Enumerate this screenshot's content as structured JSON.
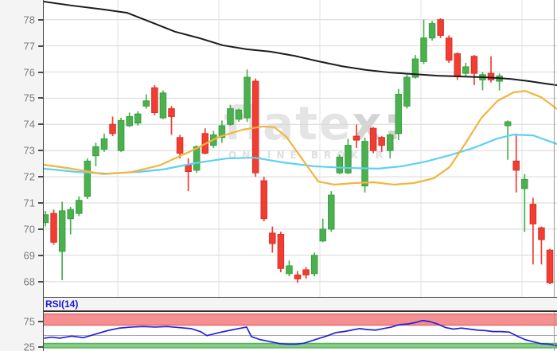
{
  "watermark": {
    "brand_main": "flate",
    "brand_suffix": "x:",
    "tagline": "ONLINE BROKER"
  },
  "price_axis": {
    "ticks": [
      78,
      77,
      76,
      75,
      74,
      73,
      72,
      71,
      70,
      69,
      68
    ]
  },
  "rsi_panel": {
    "title": "RSI(14)",
    "upper_label": "75",
    "lower_label": "25"
  },
  "colors": {
    "candle_up": "#4db050",
    "candle_up_border": "#35a03d",
    "candle_down": "#f23d33",
    "candle_down_border": "#d93028",
    "ma_long_black": "#1c1c1c",
    "ma_mid_orange": "#f2b53e",
    "ma_short_cyan": "#5fd0f2",
    "rsi_line": "#2323dd",
    "rsi_overbought_band": "#f68f8f",
    "rsi_overbought_edge": "#e06c6c",
    "rsi_oversold_band": "#86cb86",
    "rsi_oversold_edge": "#58b358",
    "rsi_midline": "#a8a8a8",
    "rsi_title": "#1515dd",
    "grid": "#d7d7d7",
    "axis_text": "#7a7a7a",
    "watermark_text": "#e4e4e4"
  },
  "chart_data": {
    "type": "candlestick",
    "title": "",
    "ylim": [
      67.7,
      78.8
    ],
    "grid": "on",
    "price_ticks": [
      78,
      77,
      76,
      75,
      74,
      73,
      72,
      71,
      70,
      69,
      68
    ],
    "candles_ohlc": [
      [
        70.25,
        70.7,
        70.1,
        70.55
      ],
      [
        70.6,
        70.75,
        69.4,
        69.5
      ],
      [
        69.15,
        71.05,
        68.05,
        70.7
      ],
      [
        70.4,
        70.85,
        69.8,
        70.75
      ],
      [
        70.6,
        71.25,
        70.5,
        71.1
      ],
      [
        71.25,
        72.7,
        71.15,
        72.6
      ],
      [
        72.8,
        73.3,
        72.4,
        73.15
      ],
      [
        73.05,
        73.65,
        72.95,
        73.45
      ],
      [
        74.0,
        74.3,
        73.55,
        73.65
      ],
      [
        73.0,
        74.25,
        72.95,
        74.15
      ],
      [
        73.95,
        74.45,
        73.9,
        74.3
      ],
      [
        74.05,
        74.5,
        73.95,
        74.4
      ],
      [
        74.7,
        75.15,
        74.6,
        74.9
      ],
      [
        75.4,
        75.5,
        74.35,
        74.45
      ],
      [
        74.25,
        75.3,
        74.2,
        75.2
      ],
      [
        74.6,
        74.7,
        73.6,
        74.3
      ],
      [
        73.5,
        73.6,
        72.7,
        72.9
      ],
      [
        72.45,
        72.7,
        71.45,
        72.2
      ],
      [
        72.25,
        73.2,
        72.15,
        73.15
      ],
      [
        73.65,
        73.85,
        72.85,
        72.9
      ],
      [
        73.2,
        73.75,
        73.1,
        73.6
      ],
      [
        73.5,
        74.15,
        73.3,
        73.95
      ],
      [
        74.0,
        74.75,
        73.95,
        74.6
      ],
      [
        74.2,
        74.6,
        74.1,
        74.55
      ],
      [
        74.25,
        76.1,
        74.1,
        75.8
      ],
      [
        75.65,
        75.75,
        72.0,
        72.15
      ],
      [
        71.85,
        72.0,
        70.3,
        70.4
      ],
      [
        69.85,
        70.1,
        69.1,
        69.45
      ],
      [
        69.8,
        69.9,
        68.35,
        68.5
      ],
      [
        68.3,
        68.8,
        68.2,
        68.6
      ],
      [
        68.25,
        68.4,
        67.95,
        68.1
      ],
      [
        68.45,
        68.55,
        68.1,
        68.25
      ],
      [
        68.3,
        69.1,
        68.2,
        69.0
      ],
      [
        69.55,
        70.4,
        69.5,
        70.0
      ],
      [
        70.0,
        71.45,
        69.9,
        71.3
      ],
      [
        72.15,
        72.85,
        72.1,
        72.75
      ],
      [
        72.15,
        73.45,
        72.1,
        73.2
      ],
      [
        73.55,
        74.0,
        73.1,
        73.4
      ],
      [
        71.65,
        73.5,
        71.4,
        73.35
      ],
      [
        73.85,
        73.9,
        72.9,
        73.0
      ],
      [
        73.5,
        73.55,
        72.95,
        73.2
      ],
      [
        73.0,
        73.65,
        72.7,
        73.6
      ],
      [
        73.65,
        75.35,
        73.4,
        75.15
      ],
      [
        74.7,
        75.9,
        74.6,
        75.8
      ],
      [
        75.8,
        76.65,
        75.75,
        76.5
      ],
      [
        76.4,
        78.0,
        76.3,
        77.3
      ],
      [
        77.3,
        77.95,
        77.2,
        77.85
      ],
      [
        78.0,
        78.05,
        77.3,
        77.4
      ],
      [
        77.3,
        77.4,
        76.35,
        76.45
      ],
      [
        76.7,
        76.75,
        75.7,
        75.85
      ],
      [
        75.95,
        76.35,
        75.85,
        76.2
      ],
      [
        76.6,
        76.65,
        75.5,
        75.95
      ],
      [
        75.7,
        76.0,
        75.3,
        75.9
      ],
      [
        75.95,
        76.6,
        75.6,
        75.7
      ],
      [
        75.65,
        75.95,
        75.3,
        75.85
      ],
      [
        73.95,
        74.15,
        72.65,
        74.1
      ],
      [
        72.6,
        73.65,
        71.4,
        72.25
      ],
      [
        71.55,
        72.1,
        69.9,
        71.9
      ],
      [
        70.95,
        71.2,
        68.65,
        70.2
      ],
      [
        70.05,
        70.1,
        68.65,
        69.6
      ],
      [
        69.2,
        69.25,
        67.9,
        67.95
      ]
    ],
    "overlays": {
      "ma_long_black": [
        [
          55,
          78.69
        ],
        [
          90,
          78.54
        ],
        [
          130,
          78.39
        ],
        [
          160,
          78.26
        ],
        [
          190,
          77.9
        ],
        [
          220,
          77.54
        ],
        [
          250,
          77.3
        ],
        [
          280,
          77.02
        ],
        [
          310,
          76.87
        ],
        [
          340,
          76.78
        ],
        [
          370,
          76.62
        ],
        [
          400,
          76.41
        ],
        [
          430,
          76.22
        ],
        [
          460,
          76.08
        ],
        [
          490,
          75.98
        ],
        [
          520,
          75.92
        ],
        [
          550,
          75.86
        ],
        [
          580,
          75.83
        ],
        [
          610,
          75.8
        ],
        [
          640,
          75.74
        ],
        [
          665,
          75.65
        ],
        [
          685,
          75.56
        ],
        [
          700,
          75.5
        ]
      ],
      "ma_mid_orange": [
        [
          55,
          72.46
        ],
        [
          90,
          72.31
        ],
        [
          130,
          72.1
        ],
        [
          165,
          72.18
        ],
        [
          200,
          72.43
        ],
        [
          240,
          72.98
        ],
        [
          275,
          73.52
        ],
        [
          305,
          73.8
        ],
        [
          330,
          73.92
        ],
        [
          345,
          73.89
        ],
        [
          360,
          73.52
        ],
        [
          380,
          72.67
        ],
        [
          400,
          71.82
        ],
        [
          420,
          71.7
        ],
        [
          445,
          71.76
        ],
        [
          470,
          71.79
        ],
        [
          495,
          71.7
        ],
        [
          520,
          71.76
        ],
        [
          545,
          71.94
        ],
        [
          565,
          72.37
        ],
        [
          585,
          73.28
        ],
        [
          605,
          74.25
        ],
        [
          625,
          74.89
        ],
        [
          645,
          75.22
        ],
        [
          660,
          75.28
        ],
        [
          680,
          75.04
        ],
        [
          700,
          74.59
        ]
      ],
      "ma_short_cyan": [
        [
          55,
          72.31
        ],
        [
          95,
          72.19
        ],
        [
          135,
          72.12
        ],
        [
          175,
          72.19
        ],
        [
          205,
          72.28
        ],
        [
          245,
          72.52
        ],
        [
          285,
          72.7
        ],
        [
          320,
          72.73
        ],
        [
          355,
          72.55
        ],
        [
          395,
          72.4
        ],
        [
          435,
          72.34
        ],
        [
          475,
          72.31
        ],
        [
          505,
          72.4
        ],
        [
          535,
          72.58
        ],
        [
          565,
          72.82
        ],
        [
          595,
          73.1
        ],
        [
          625,
          73.46
        ],
        [
          645,
          73.61
        ],
        [
          670,
          73.58
        ],
        [
          700,
          73.25
        ]
      ]
    },
    "rsi": {
      "label": "RSI(14)",
      "upper_level": 75,
      "lower_level": 25,
      "series": [
        [
          56,
          42
        ],
        [
          65,
          44
        ],
        [
          75,
          42
        ],
        [
          90,
          46
        ],
        [
          105,
          43
        ],
        [
          120,
          50
        ],
        [
          135,
          57
        ],
        [
          150,
          62
        ],
        [
          165,
          64
        ],
        [
          180,
          65
        ],
        [
          195,
          64
        ],
        [
          210,
          65
        ],
        [
          225,
          63
        ],
        [
          240,
          61
        ],
        [
          252,
          55
        ],
        [
          260,
          47
        ],
        [
          275,
          53
        ],
        [
          290,
          58
        ],
        [
          310,
          64
        ],
        [
          316,
          45
        ],
        [
          327,
          39
        ],
        [
          340,
          35
        ],
        [
          352,
          31
        ],
        [
          362,
          30
        ],
        [
          372,
          30
        ],
        [
          382,
          32
        ],
        [
          392,
          37
        ],
        [
          402,
          42
        ],
        [
          412,
          47
        ],
        [
          422,
          53
        ],
        [
          432,
          55
        ],
        [
          442,
          58
        ],
        [
          452,
          61
        ],
        [
          462,
          59
        ],
        [
          472,
          58
        ],
        [
          482,
          61
        ],
        [
          492,
          64
        ],
        [
          502,
          69
        ],
        [
          512,
          70
        ],
        [
          522,
          73
        ],
        [
          531,
          77
        ],
        [
          540,
          75
        ],
        [
          550,
          70
        ],
        [
          560,
          63
        ],
        [
          570,
          60
        ],
        [
          580,
          62
        ],
        [
          590,
          60
        ],
        [
          600,
          58
        ],
        [
          610,
          57
        ],
        [
          620,
          55
        ],
        [
          630,
          55
        ],
        [
          640,
          54
        ],
        [
          650,
          46
        ],
        [
          660,
          39
        ],
        [
          670,
          35
        ],
        [
          680,
          31
        ],
        [
          690,
          30
        ],
        [
          700,
          27
        ]
      ]
    }
  }
}
